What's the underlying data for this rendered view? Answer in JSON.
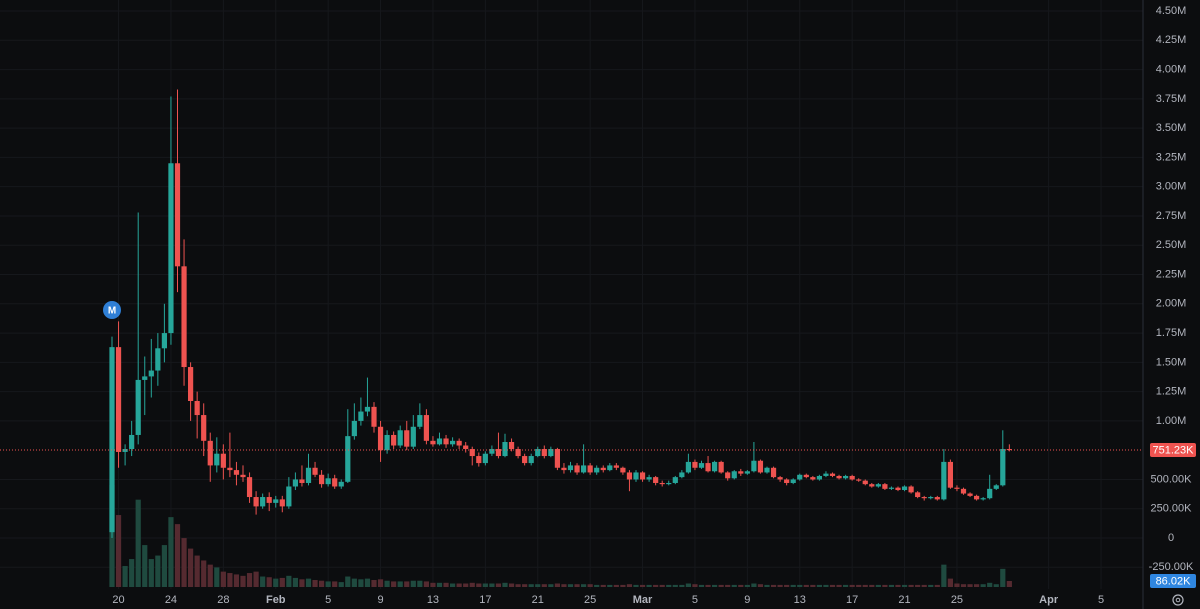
{
  "chart_data": {
    "type": "candlestick",
    "categories": [
      null,
      "20",
      null,
      null,
      null,
      null,
      null,
      null,
      null,
      "24",
      null,
      null,
      null,
      null,
      null,
      null,
      null,
      "28",
      null,
      null,
      null,
      null,
      null,
      null,
      null,
      "Feb",
      null,
      null,
      null,
      null,
      null,
      null,
      null,
      "5",
      null,
      null,
      null,
      null,
      null,
      null,
      null,
      "9",
      null,
      null,
      null,
      null,
      null,
      null,
      null,
      "13",
      null,
      null,
      null,
      null,
      null,
      null,
      null,
      "17",
      null,
      null,
      null,
      null,
      null,
      null,
      null,
      "21",
      null,
      null,
      null,
      null,
      null,
      null,
      null,
      "25",
      null,
      null,
      null,
      null,
      null,
      null,
      null,
      "Mar",
      null,
      null,
      null,
      null,
      null,
      null,
      null,
      "5",
      null,
      null,
      null,
      null,
      null,
      null,
      null,
      "9",
      null,
      null,
      null,
      null,
      null,
      null,
      null,
      "13",
      null,
      null,
      null,
      null,
      null,
      null,
      null,
      "17",
      null,
      null,
      null,
      null,
      null,
      null,
      null,
      "21",
      null,
      null,
      null,
      null,
      null,
      null,
      null,
      "25",
      null,
      null,
      null,
      null,
      null,
      null,
      null,
      null,
      null,
      null,
      null,
      null,
      null,
      "Apr",
      null,
      null,
      null,
      null,
      null,
      null,
      null,
      "5"
    ],
    "open": [
      50000,
      1630000,
      735000,
      760000,
      880000,
      1350000,
      1380000,
      1430000,
      1620000,
      1750000,
      3200000,
      2320000,
      1460000,
      1170000,
      1050000,
      830000,
      620000,
      720000,
      600000,
      580000,
      540000,
      520000,
      350000,
      270000,
      350000,
      300000,
      330000,
      270000,
      440000,
      500000,
      470000,
      600000,
      540000,
      460000,
      510000,
      440000,
      480000,
      870000,
      1000000,
      1080000,
      1120000,
      950000,
      750000,
      880000,
      790000,
      920000,
      780000,
      950000,
      1050000,
      830000,
      800000,
      850000,
      800000,
      830000,
      790000,
      760000,
      700000,
      640000,
      720000,
      760000,
      700000,
      820000,
      760000,
      700000,
      640000,
      700000,
      760000,
      700000,
      760000,
      600000,
      580000,
      620000,
      560000,
      620000,
      560000,
      600000,
      580000,
      620000,
      600000,
      560000,
      500000,
      560000,
      500000,
      520000,
      470000,
      460000,
      470000,
      520000,
      560000,
      650000,
      600000,
      640000,
      570000,
      650000,
      560000,
      510000,
      570000,
      550000,
      570000,
      660000,
      560000,
      600000,
      520000,
      500000,
      470000,
      500000,
      540000,
      520000,
      500000,
      530000,
      550000,
      530000,
      510000,
      530000,
      500000,
      490000,
      460000,
      440000,
      460000,
      420000,
      430000,
      410000,
      440000,
      390000,
      350000,
      340000,
      350000,
      330000,
      650000,
      430000,
      420000,
      380000,
      360000,
      330000,
      340000,
      420000,
      450000,
      760000,
      null,
      null,
      null,
      null,
      null,
      null,
      null,
      null,
      null,
      null,
      null,
      null,
      null,
      null
    ],
    "high": [
      1720000,
      1850000,
      800000,
      1000000,
      2780000,
      1550000,
      1700000,
      1750000,
      2000000,
      3770000,
      3830000,
      2550000,
      1500000,
      1250000,
      1150000,
      900000,
      860000,
      800000,
      900000,
      650000,
      620000,
      560000,
      400000,
      380000,
      390000,
      360000,
      360000,
      520000,
      560000,
      620000,
      720000,
      650000,
      580000,
      550000,
      540000,
      500000,
      1100000,
      1150000,
      1200000,
      1370000,
      1160000,
      1000000,
      920000,
      910000,
      960000,
      1000000,
      1050000,
      1150000,
      1100000,
      870000,
      900000,
      880000,
      860000,
      850000,
      820000,
      780000,
      730000,
      740000,
      790000,
      900000,
      890000,
      850000,
      780000,
      720000,
      720000,
      780000,
      790000,
      780000,
      770000,
      640000,
      650000,
      640000,
      800000,
      640000,
      620000,
      620000,
      640000,
      640000,
      610000,
      580000,
      580000,
      570000,
      540000,
      530000,
      490000,
      490000,
      530000,
      580000,
      720000,
      670000,
      660000,
      700000,
      660000,
      660000,
      570000,
      580000,
      590000,
      580000,
      820000,
      670000,
      610000,
      610000,
      530000,
      510000,
      510000,
      550000,
      550000,
      530000,
      540000,
      570000,
      560000,
      540000,
      540000,
      540000,
      510000,
      500000,
      470000,
      470000,
      470000,
      440000,
      440000,
      450000,
      450000,
      400000,
      360000,
      360000,
      360000,
      760000,
      670000,
      450000,
      430000,
      390000,
      370000,
      350000,
      540000,
      460000,
      920000,
      800000,
      null,
      null,
      null,
      null,
      null,
      null,
      null,
      null,
      null,
      null,
      null,
      null,
      null,
      null
    ],
    "low": [
      0,
      600000,
      620000,
      700000,
      800000,
      1050000,
      1200000,
      1300000,
      1500000,
      1650000,
      2100000,
      1300000,
      1000000,
      850000,
      700000,
      480000,
      560000,
      500000,
      520000,
      450000,
      480000,
      300000,
      200000,
      250000,
      230000,
      260000,
      220000,
      250000,
      410000,
      440000,
      450000,
      520000,
      430000,
      440000,
      420000,
      420000,
      470000,
      840000,
      960000,
      1040000,
      900000,
      650000,
      720000,
      760000,
      770000,
      750000,
      760000,
      930000,
      800000,
      780000,
      790000,
      770000,
      780000,
      760000,
      730000,
      620000,
      610000,
      620000,
      700000,
      680000,
      690000,
      740000,
      680000,
      620000,
      620000,
      690000,
      680000,
      690000,
      580000,
      550000,
      560000,
      540000,
      550000,
      540000,
      540000,
      560000,
      570000,
      580000,
      540000,
      400000,
      480000,
      480000,
      480000,
      450000,
      440000,
      450000,
      460000,
      510000,
      550000,
      580000,
      590000,
      560000,
      560000,
      550000,
      490000,
      500000,
      530000,
      540000,
      560000,
      550000,
      550000,
      510000,
      480000,
      450000,
      460000,
      490000,
      510000,
      490000,
      490000,
      520000,
      520000,
      500000,
      500000,
      490000,
      480000,
      450000,
      430000,
      430000,
      410000,
      410000,
      400000,
      400000,
      380000,
      340000,
      320000,
      330000,
      320000,
      320000,
      420000,
      400000,
      370000,
      350000,
      320000,
      320000,
      330000,
      410000,
      440000,
      740000,
      null,
      null,
      null,
      null,
      null,
      null,
      null,
      null,
      null,
      null,
      null,
      null,
      null,
      null
    ],
    "close": [
      1630000,
      735000,
      760000,
      880000,
      1350000,
      1380000,
      1430000,
      1620000,
      1750000,
      3200000,
      2320000,
      1460000,
      1170000,
      1050000,
      830000,
      620000,
      720000,
      600000,
      580000,
      540000,
      520000,
      350000,
      270000,
      350000,
      300000,
      330000,
      270000,
      440000,
      500000,
      470000,
      600000,
      540000,
      460000,
      510000,
      440000,
      480000,
      870000,
      1000000,
      1080000,
      1120000,
      950000,
      750000,
      880000,
      790000,
      920000,
      780000,
      950000,
      1050000,
      830000,
      800000,
      850000,
      800000,
      830000,
      790000,
      760000,
      700000,
      640000,
      720000,
      760000,
      700000,
      820000,
      760000,
      700000,
      640000,
      700000,
      760000,
      700000,
      760000,
      600000,
      580000,
      620000,
      560000,
      620000,
      560000,
      600000,
      580000,
      620000,
      600000,
      560000,
      500000,
      560000,
      500000,
      520000,
      470000,
      460000,
      470000,
      520000,
      560000,
      650000,
      600000,
      640000,
      570000,
      650000,
      560000,
      510000,
      570000,
      550000,
      570000,
      660000,
      560000,
      600000,
      520000,
      500000,
      470000,
      500000,
      540000,
      520000,
      500000,
      530000,
      550000,
      530000,
      510000,
      530000,
      500000,
      490000,
      460000,
      440000,
      460000,
      420000,
      430000,
      410000,
      440000,
      390000,
      350000,
      340000,
      350000,
      330000,
      650000,
      430000,
      420000,
      380000,
      360000,
      330000,
      340000,
      420000,
      450000,
      760000,
      751230,
      null,
      null,
      null,
      null,
      null,
      null,
      null,
      null,
      null,
      null,
      null,
      null,
      null,
      null
    ],
    "volume": [
      1460000,
      1030000,
      300000,
      400000,
      1250000,
      600000,
      400000,
      450000,
      600000,
      1000000,
      900000,
      700000,
      550000,
      450000,
      380000,
      320000,
      280000,
      220000,
      200000,
      180000,
      160000,
      200000,
      220000,
      150000,
      140000,
      120000,
      130000,
      160000,
      130000,
      110000,
      120000,
      100000,
      90000,
      80000,
      80000,
      70000,
      150000,
      120000,
      110000,
      120000,
      100000,
      110000,
      90000,
      80000,
      80000,
      80000,
      90000,
      90000,
      80000,
      60000,
      60000,
      60000,
      50000,
      50000,
      50000,
      60000,
      50000,
      50000,
      50000,
      50000,
      60000,
      50000,
      40000,
      40000,
      40000,
      40000,
      40000,
      40000,
      50000,
      40000,
      40000,
      40000,
      40000,
      40000,
      30000,
      30000,
      30000,
      30000,
      30000,
      40000,
      30000,
      30000,
      30000,
      30000,
      30000,
      30000,
      30000,
      30000,
      50000,
      40000,
      30000,
      30000,
      30000,
      30000,
      30000,
      30000,
      30000,
      30000,
      50000,
      40000,
      30000,
      30000,
      30000,
      30000,
      30000,
      30000,
      30000,
      30000,
      30000,
      30000,
      30000,
      30000,
      30000,
      30000,
      30000,
      30000,
      30000,
      30000,
      30000,
      30000,
      30000,
      30000,
      30000,
      30000,
      30000,
      30000,
      30000,
      320000,
      120000,
      50000,
      40000,
      40000,
      40000,
      40000,
      60000,
      40000,
      260000,
      86020,
      null,
      null,
      null,
      null,
      null,
      null,
      null,
      null,
      null,
      null,
      null,
      null,
      null,
      null
    ],
    "up_color": "#26a69a",
    "down_color": "#ef5350",
    "volume_up_color": "#1f4a3f",
    "volume_down_color": "#552a30",
    "ylim": [
      -606000,
      4594000
    ],
    "yticks": [
      {
        "value": -250000,
        "label": "-250.00K"
      },
      0,
      {
        "value": 250000,
        "label": "250.00K"
      },
      {
        "value": 500000,
        "label": "500.00K"
      },
      {
        "value": 1000000,
        "label": "1.00M"
      },
      {
        "value": 1250000,
        "label": "1.25M"
      },
      {
        "value": 1500000,
        "label": "1.50M"
      },
      {
        "value": 1750000,
        "label": "1.75M"
      },
      {
        "value": 2000000,
        "label": "2.00M"
      },
      {
        "value": 2250000,
        "label": "2.25M"
      },
      {
        "value": 2500000,
        "label": "2.50M"
      },
      {
        "value": 2750000,
        "label": "2.75M"
      },
      {
        "value": 3000000,
        "label": "3.00M"
      },
      {
        "value": 3250000,
        "label": "3.25M"
      },
      {
        "value": 3500000,
        "label": "3.50M"
      },
      {
        "value": 3750000,
        "label": "3.75M"
      },
      {
        "value": 4000000,
        "label": "4.00M"
      },
      {
        "value": 4250000,
        "label": "4.25M"
      },
      {
        "value": 4500000,
        "label": "4.50M"
      }
    ],
    "grid": true,
    "price_line": {
      "value": 751230,
      "label": "751.23K"
    },
    "volume_label": {
      "value": 86020,
      "label": "86.02K"
    },
    "marker": "M"
  }
}
